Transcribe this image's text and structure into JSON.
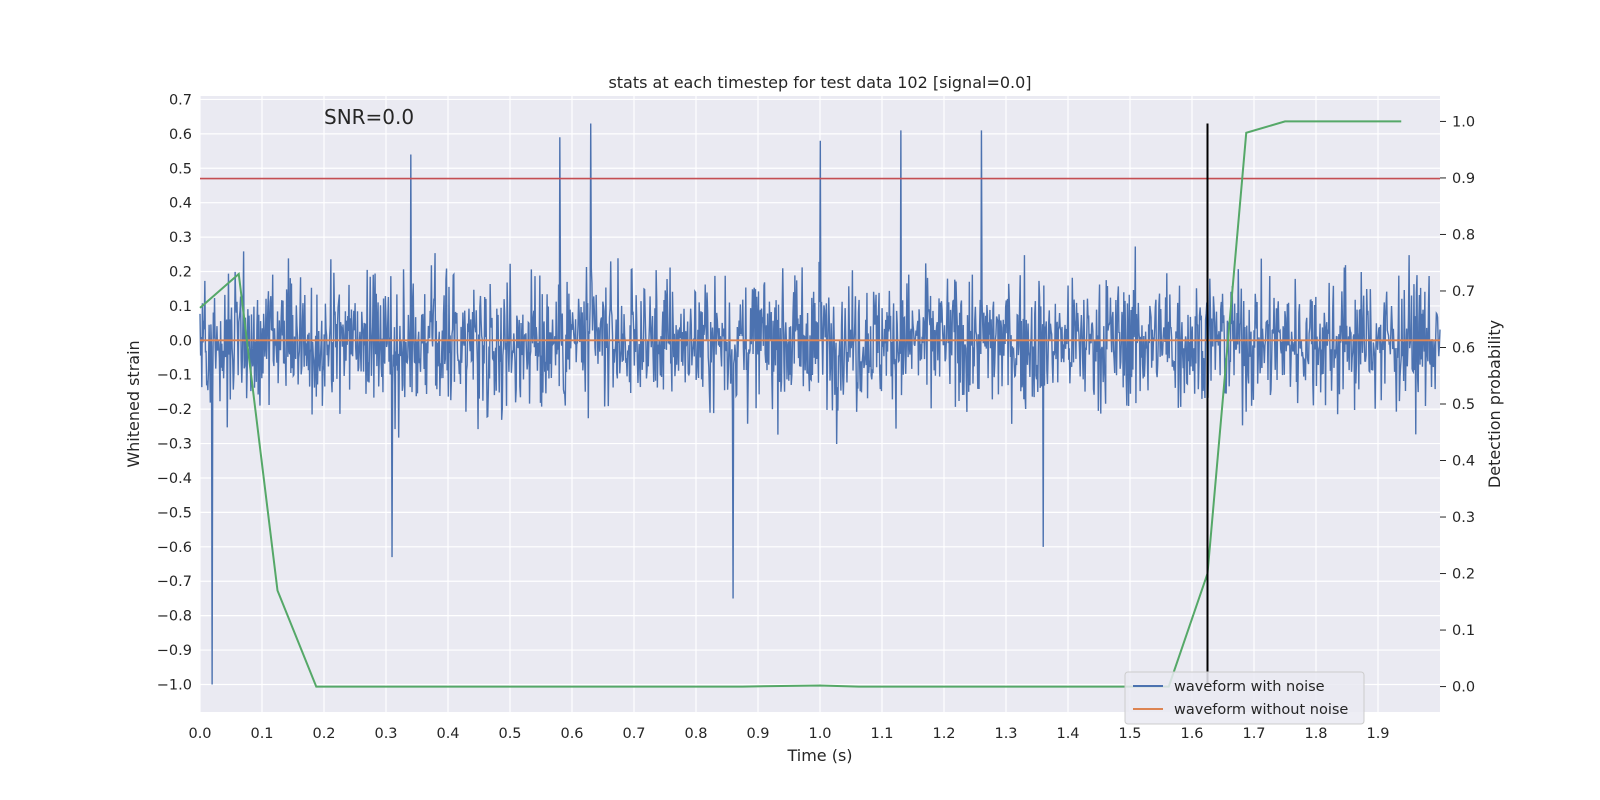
{
  "chart_data": {
    "type": "line",
    "title": "stats at each timestep for test data 102 [signal=0.0]",
    "xlabel": "Time (s)",
    "ylabel": "Whitened strain",
    "y2label": "Detection probability",
    "xlim": [
      0.0,
      2.0
    ],
    "ylim": [
      -1.08,
      0.71
    ],
    "y2lim": [
      -0.045,
      1.045
    ],
    "xticks": [
      "0.0",
      "0.1",
      "0.2",
      "0.3",
      "0.4",
      "0.5",
      "0.6",
      "0.7",
      "0.8",
      "0.9",
      "1.0",
      "1.1",
      "1.2",
      "1.3",
      "1.4",
      "1.5",
      "1.6",
      "1.7",
      "1.8",
      "1.9"
    ],
    "yticks": [
      "0.7",
      "0.6",
      "0.5",
      "0.4",
      "0.3",
      "0.2",
      "0.1",
      "0.0",
      "−0.1",
      "−0.2",
      "−0.3",
      "−0.4",
      "−0.5",
      "−0.6",
      "−0.7",
      "−0.8",
      "−0.9",
      "−1.0"
    ],
    "y2ticks": [
      "0.0",
      "0.1",
      "0.2",
      "0.3",
      "0.4",
      "0.5",
      "0.6",
      "0.7",
      "0.8",
      "0.9",
      "1.0"
    ],
    "annotation": "SNR=0.0",
    "grid": true,
    "legend_position": "lower-right",
    "series": [
      {
        "name": "waveform with noise",
        "color": "#4c72b0",
        "axis": "left",
        "t_start": 0.0,
        "t_end": 2.0,
        "n_samples": 2048,
        "amplitude_range": [
          -1.0,
          0.63
        ],
        "notable_points": [
          {
            "x": 0.02,
            "y": -1.0
          },
          {
            "x": 0.34,
            "y": 0.54
          },
          {
            "x": 0.58,
            "y": 0.59
          },
          {
            "x": 0.63,
            "y": 0.63
          },
          {
            "x": 0.86,
            "y": -0.75
          },
          {
            "x": 0.31,
            "y": -0.63
          },
          {
            "x": 1.36,
            "y": -0.6
          },
          {
            "x": 1.13,
            "y": 0.61
          },
          {
            "x": 1.26,
            "y": 0.61
          },
          {
            "x": 1.0,
            "y": 0.58
          }
        ]
      },
      {
        "name": "waveform without noise",
        "color": "#dd8452",
        "axis": "left",
        "x": [
          0.0,
          2.0
        ],
        "y": [
          0.0,
          0.0
        ]
      },
      {
        "color": "#55a868",
        "axis": "right",
        "x": [
          0.0,
          0.0625,
          0.125,
          0.1875,
          0.25,
          0.5,
          0.875,
          1.0,
          1.0625,
          1.5625,
          1.625,
          1.6875,
          1.75,
          1.9375
        ],
        "y": [
          0.67,
          0.73,
          0.17,
          0.0,
          0.0,
          0.0,
          0.0,
          0.002,
          0.0,
          0.0,
          0.2,
          0.98,
          1.0,
          1.0
        ]
      }
    ],
    "hlines": [
      {
        "y": 0.47,
        "color": "#c44e52",
        "axis": "left"
      }
    ],
    "vlines": [
      {
        "x": 1.625,
        "y_from": -1.0,
        "y_to": 0.63,
        "color": "#000000"
      }
    ]
  }
}
